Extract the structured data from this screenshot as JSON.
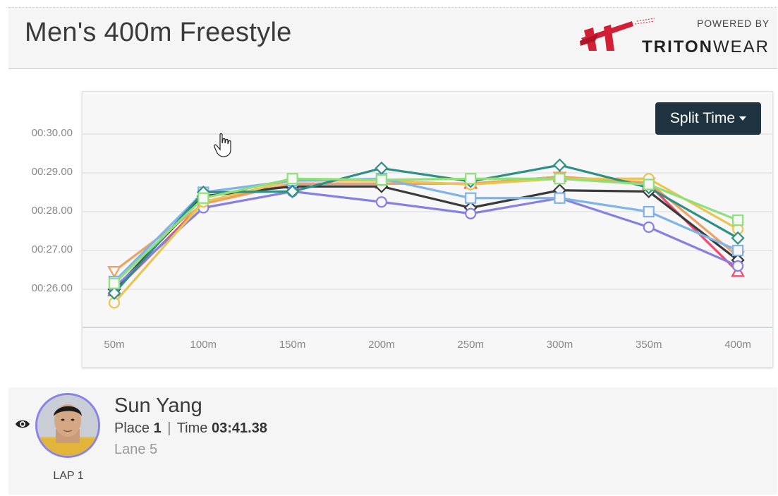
{
  "header": {
    "title": "Men's 400m Freestyle",
    "powered_by": "POWERED BY",
    "brand_bold": "TRITON",
    "brand_light": "WEAR",
    "brand_color": "#d21f35"
  },
  "controls": {
    "metric_button": "Split Time"
  },
  "chart_data": {
    "type": "line",
    "x": [
      "50m",
      "100m",
      "150m",
      "200m",
      "250m",
      "300m",
      "350m",
      "400m"
    ],
    "y_ticks": [
      "00:30.00",
      "00:29.00",
      "00:28.00",
      "00:27.00",
      "00:26.00"
    ],
    "ylim": [
      25.0,
      30.5
    ],
    "ylabel": "",
    "xlabel": "",
    "grid": true,
    "series": [
      {
        "color": "#ef4b6e",
        "marker": "triangle-up",
        "values": [
          25.95,
          28.22,
          28.72,
          28.72,
          28.72,
          28.9,
          28.7,
          26.45
        ]
      },
      {
        "color": "#f0a060",
        "marker": "triangle-down",
        "values": [
          26.47,
          28.2,
          28.72,
          28.72,
          28.72,
          28.9,
          28.75,
          26.85
        ]
      },
      {
        "color": "#3a3a3a",
        "marker": "diamond",
        "values": [
          26.0,
          28.4,
          28.65,
          28.65,
          28.1,
          28.55,
          28.52,
          26.75
        ]
      },
      {
        "color": "#8680e2",
        "marker": "circle",
        "values": [
          26.05,
          28.1,
          28.52,
          28.25,
          27.95,
          28.35,
          27.6,
          26.6
        ]
      },
      {
        "color": "#e8c650",
        "marker": "circle",
        "values": [
          25.65,
          28.25,
          28.8,
          28.8,
          28.7,
          28.85,
          28.85,
          27.55
        ]
      },
      {
        "color": "#7fb4e8",
        "marker": "square",
        "values": [
          26.2,
          28.5,
          28.8,
          28.85,
          28.35,
          28.35,
          28.0,
          27.0
        ]
      },
      {
        "color": "#2e8f87",
        "marker": "diamond",
        "values": [
          25.9,
          28.5,
          28.52,
          29.12,
          28.78,
          29.2,
          28.62,
          27.32
        ]
      },
      {
        "color": "#8fe07a",
        "marker": "square",
        "values": [
          26.15,
          28.35,
          28.85,
          28.82,
          28.85,
          28.85,
          28.7,
          27.78
        ]
      }
    ]
  },
  "athlete": {
    "name": "Sun Yang",
    "place_label": "Place",
    "place": "1",
    "separator": "|",
    "time_label": "Time",
    "time": "03:41.38",
    "lane": "Lane 5",
    "lap": "LAP 1",
    "ring_color": "#8a83e6"
  }
}
